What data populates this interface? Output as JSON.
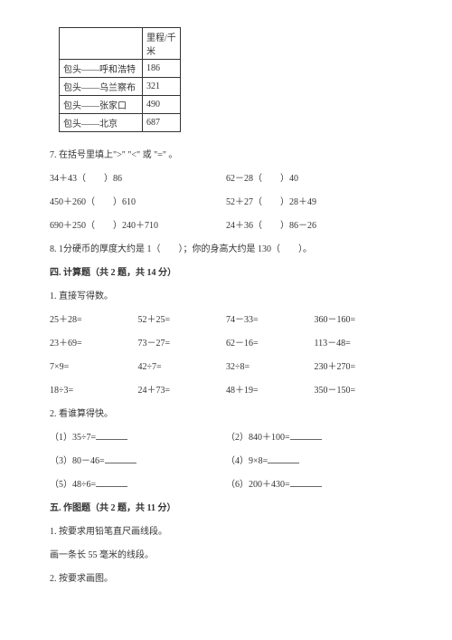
{
  "table": {
    "header_blank": "",
    "header_km": "里程/千米",
    "rows": [
      {
        "route": "包头——呼和浩特",
        "km": "186"
      },
      {
        "route": "包头——乌兰察布",
        "km": "321"
      },
      {
        "route": "包头——张家口",
        "km": "490"
      },
      {
        "route": "包头——北京",
        "km": "687"
      }
    ]
  },
  "q7": {
    "title": "7. 在括号里填上\">\" \"<\" 或 \"=\" 。",
    "rows": [
      {
        "a": "34＋43（　　）86",
        "b": "62－28（　　）40"
      },
      {
        "a": "450＋260（　　）610",
        "b": "52＋27（　　）28＋49"
      },
      {
        "a": "690＋250（　　）240＋710",
        "b": "24＋36（　　）86－26"
      }
    ]
  },
  "q8": "8. 1分硬币的厚度大约是 1（　　）；你的身高大约是 130（　　）。",
  "section4": {
    "heading": "四. 计算题（共 2 题，共 14 分）",
    "q1": {
      "title": "1. 直接写得数。",
      "rows": [
        [
          "25＋28=",
          "52＋25=",
          "74－33=",
          "360－160="
        ],
        [
          "23＋69=",
          "73－27=",
          "62－16=",
          "113－48="
        ],
        [
          "7×9=",
          "42÷7=",
          "32÷8=",
          "230＋270="
        ],
        [
          "18÷3=",
          "24＋73=",
          "48＋19=",
          "350－150="
        ]
      ]
    },
    "q2": {
      "title": "2. 看谁算得快。",
      "rows": [
        {
          "a": "（1）35÷7=",
          "b": "（2）840＋100="
        },
        {
          "a": "（3）80－46=",
          "b": "（4）9×8="
        },
        {
          "a": "（5）48÷6=",
          "b": "（6）200＋430="
        }
      ]
    }
  },
  "section5": {
    "heading": "五. 作图题（共 2 题，共 11 分）",
    "q1a": "1. 按要求用铅笔直尺画线段。",
    "q1b": "画一条长 55 毫米的线段。",
    "q2": "2. 按要求画图。"
  }
}
